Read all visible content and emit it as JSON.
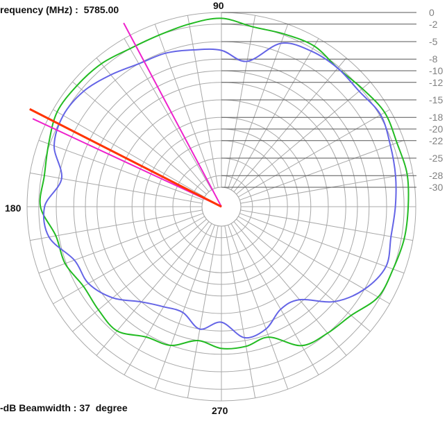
{
  "header": {
    "frequency_label": "requency (MHz) :",
    "frequency_value": "5785.00",
    "beamwidth_label": "-dB Beamwidth :",
    "beamwidth_value": "37",
    "beamwidth_unit": "degree"
  },
  "colors": {
    "grid": "#a8a8a8",
    "series_green": "#22bb22",
    "series_blue": "#6464e6",
    "beam_center": "#ff3300",
    "beam_edges": "#ee22cc",
    "scale_text": "#808080"
  },
  "chart_data": {
    "type": "polar-line",
    "angle_labels": [
      "90",
      "180",
      "270"
    ],
    "angle_grid_step_deg": 10,
    "radial_levels_db": [
      0,
      -2,
      -5,
      -8,
      -10,
      -12,
      -15,
      -18,
      -20,
      -22,
      -25,
      -28,
      -30
    ],
    "radial_tick_labels": [
      "0",
      "-2",
      "-5",
      "-8",
      "-10",
      "-12",
      "-15",
      "-18",
      "-20",
      "-22",
      "-25",
      "-28",
      "-30"
    ],
    "radial_range_db": [
      -30,
      0
    ],
    "beam_lines_deg": {
      "center": 153,
      "edges": [
        118,
        155
      ]
    },
    "series": [
      {
        "color_key": "series_green",
        "angles_deg": [
          0,
          10,
          20,
          30,
          40,
          50,
          60,
          70,
          80,
          90,
          100,
          110,
          120,
          130,
          140,
          150,
          160,
          170,
          180,
          190,
          200,
          210,
          220,
          230,
          240,
          250,
          260,
          270,
          280,
          290,
          300,
          310,
          320,
          330,
          340,
          350
        ],
        "values_db": [
          -1.3,
          -1.0,
          -1.3,
          -1.0,
          -1.8,
          -2.3,
          -1.5,
          -1.8,
          -2.0,
          -1.0,
          -1.5,
          -2.0,
          -2.0,
          -1.3,
          -1.0,
          -0.8,
          -1.8,
          -2.5,
          -2.3,
          -4.5,
          -4.8,
          -6.0,
          -5.8,
          -5.5,
          -7.5,
          -8.0,
          -10.0,
          -9.0,
          -9.0,
          -9.5,
          -5.8,
          -5.0,
          -4.3,
          -2.3,
          -2.0,
          -1.5
        ]
      },
      {
        "color_key": "series_blue",
        "angles_deg": [
          0,
          10,
          20,
          30,
          40,
          50,
          60,
          70,
          80,
          90,
          100,
          110,
          120,
          130,
          140,
          150,
          160,
          170,
          180,
          190,
          200,
          210,
          220,
          230,
          240,
          250,
          260,
          270,
          280,
          290,
          300,
          310,
          320,
          330,
          340,
          350
        ],
        "values_db": [
          -3.5,
          -3.0,
          -2.5,
          -1.8,
          -2.5,
          -2.3,
          -2.5,
          -3.5,
          -8.0,
          -6.5,
          -6.0,
          -5.3,
          -5.0,
          -3.8,
          -2.5,
          -2.0,
          -2.8,
          -5.5,
          -3.0,
          -3.3,
          -6.5,
          -7.0,
          -9.0,
          -12.0,
          -13.5,
          -14.0,
          -12.0,
          -13.5,
          -10.5,
          -11.0,
          -13.0,
          -12.5,
          -8.0,
          -5.0,
          -3.3,
          -3.8
        ]
      }
    ]
  }
}
